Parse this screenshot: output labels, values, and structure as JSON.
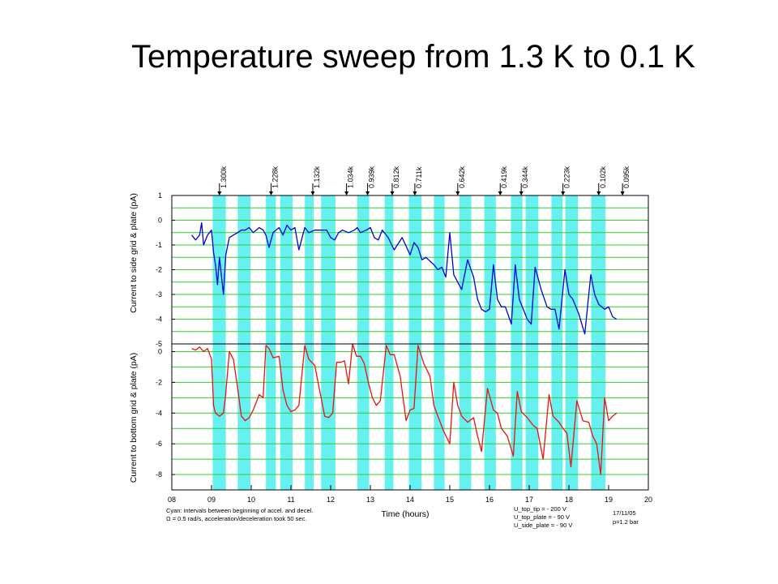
{
  "slide": {
    "title": "Temperature sweep from 1.3 K to 0.1 K"
  },
  "chart_data": {
    "type": "line",
    "xlabel": "Time (hours)",
    "x_ticks": [
      "08",
      "09",
      "10",
      "11",
      "12",
      "13",
      "14",
      "15",
      "16",
      "17",
      "18",
      "19",
      "20"
    ],
    "xlim": [
      8,
      20
    ],
    "grid": true,
    "colors": {
      "band": "#66f0f0",
      "grid": "#33cc33",
      "top_series": "#0000dd",
      "bottom_series": "#ee1111"
    },
    "cyan_intervals": [
      [
        9.03,
        9.36
      ],
      [
        9.66,
        9.98
      ],
      [
        10.37,
        10.62
      ],
      [
        10.73,
        11.04
      ],
      [
        11.35,
        11.57
      ],
      [
        11.76,
        12.12
      ],
      [
        12.67,
        12.97
      ],
      [
        13.36,
        13.58
      ],
      [
        13.97,
        14.29
      ],
      [
        14.6,
        14.87
      ],
      [
        15.24,
        15.54
      ],
      [
        15.87,
        16.16
      ],
      [
        16.54,
        16.83
      ],
      [
        16.91,
        17.23
      ],
      [
        17.56,
        17.84
      ],
      [
        17.91,
        18.23
      ],
      [
        18.56,
        18.92
      ]
    ],
    "temperature_markers": [
      {
        "time": 9.2,
        "label": "1.300k"
      },
      {
        "time": 10.5,
        "label": "1.228k"
      },
      {
        "time": 11.55,
        "label": "1.132k"
      },
      {
        "time": 12.4,
        "label": "1.034k"
      },
      {
        "time": 12.93,
        "label": "0.939k"
      },
      {
        "time": 13.55,
        "label": "0.812k"
      },
      {
        "time": 14.12,
        "label": "0.711k"
      },
      {
        "time": 15.2,
        "label": "0.642k"
      },
      {
        "time": 16.27,
        "label": "0.419k"
      },
      {
        "time": 16.8,
        "label": "0.344k"
      },
      {
        "time": 17.85,
        "label": "0.223k"
      },
      {
        "time": 18.75,
        "label": "0.102k"
      },
      {
        "time": 19.35,
        "label": "0.095k"
      }
    ],
    "panels": [
      {
        "ylabel": "Current to side grid & plate (pA)",
        "y_ticks": [
          1,
          0,
          -1,
          -2,
          -3,
          -4,
          -5
        ],
        "ylim": [
          -5,
          1
        ],
        "grid_step": 0.5,
        "series": {
          "x": [
            8.5,
            8.6,
            8.7,
            8.75,
            8.8,
            8.9,
            9.0,
            9.05,
            9.1,
            9.15,
            9.2,
            9.3,
            9.36,
            9.45,
            9.55,
            9.66,
            9.75,
            9.85,
            9.95,
            10.05,
            10.2,
            10.3,
            10.37,
            10.45,
            10.55,
            10.7,
            10.8,
            10.9,
            11.0,
            11.1,
            11.2,
            11.35,
            11.45,
            11.6,
            11.8,
            11.9,
            12.0,
            12.1,
            12.2,
            12.3,
            12.45,
            12.6,
            12.67,
            12.75,
            12.9,
            13.0,
            13.1,
            13.2,
            13.3,
            13.45,
            13.6,
            13.8,
            14.0,
            14.1,
            14.2,
            14.3,
            14.4,
            14.6,
            14.7,
            14.8,
            14.9,
            15.0,
            15.1,
            15.2,
            15.3,
            15.45,
            15.6,
            15.7,
            15.8,
            15.9,
            16.0,
            16.1,
            16.2,
            16.3,
            16.4,
            16.55,
            16.65,
            16.75,
            16.85,
            16.95,
            17.05,
            17.15,
            17.3,
            17.45,
            17.55,
            17.65,
            17.75,
            17.9,
            18.0,
            18.1,
            18.25,
            18.4,
            18.55,
            18.65,
            18.75,
            18.9,
            19.0,
            19.1,
            19.2
          ],
          "values": [
            -0.6,
            -0.8,
            -0.6,
            -0.1,
            -1.0,
            -0.6,
            -0.4,
            -1.3,
            -1.8,
            -2.6,
            -1.5,
            -3.0,
            -1.4,
            -0.7,
            -0.6,
            -0.5,
            -0.4,
            -0.4,
            -0.3,
            -0.5,
            -0.3,
            -0.4,
            -0.6,
            -1.1,
            -0.5,
            -0.3,
            -0.6,
            -0.2,
            -0.4,
            -0.3,
            -1.2,
            -0.3,
            -0.5,
            -0.4,
            -0.4,
            -0.4,
            -0.7,
            -0.8,
            -0.5,
            -0.4,
            -0.5,
            -0.4,
            -0.3,
            -0.5,
            -0.4,
            -0.3,
            -0.7,
            -0.8,
            -0.4,
            -0.7,
            -1.2,
            -0.7,
            -1.4,
            -0.9,
            -1.1,
            -1.6,
            -1.5,
            -1.8,
            -2.0,
            -1.9,
            -2.3,
            -0.5,
            -2.2,
            -2.5,
            -2.8,
            -1.6,
            -2.3,
            -3.2,
            -3.6,
            -3.7,
            -3.6,
            -1.8,
            -3.2,
            -3.5,
            -3.5,
            -4.2,
            -1.8,
            -3.2,
            -3.6,
            -4.0,
            -4.2,
            -1.9,
            -2.8,
            -3.5,
            -3.6,
            -3.6,
            -4.4,
            -2.0,
            -3.0,
            -3.2,
            -3.8,
            -4.6,
            -2.2,
            -3.0,
            -3.4,
            -3.6,
            -3.5,
            -3.9,
            -4.0
          ]
        }
      },
      {
        "ylabel": "Current to bottom grid & plate (pA)",
        "y_ticks": [
          0,
          -2,
          -4,
          -6,
          -8
        ],
        "ylim": [
          -9,
          0.5
        ],
        "grid_step": 1,
        "series": {
          "x": [
            8.5,
            8.6,
            8.7,
            8.8,
            8.9,
            9.0,
            9.05,
            9.1,
            9.2,
            9.3,
            9.35,
            9.45,
            9.55,
            9.66,
            9.75,
            9.85,
            9.95,
            10.05,
            10.2,
            10.3,
            10.37,
            10.45,
            10.55,
            10.7,
            10.8,
            10.9,
            11.0,
            11.1,
            11.2,
            11.35,
            11.45,
            11.6,
            11.76,
            11.85,
            11.95,
            12.05,
            12.15,
            12.25,
            12.35,
            12.45,
            12.55,
            12.65,
            12.75,
            12.85,
            12.95,
            13.05,
            13.15,
            13.25,
            13.4,
            13.5,
            13.6,
            13.75,
            13.9,
            14.0,
            14.1,
            14.2,
            14.35,
            14.5,
            14.6,
            14.7,
            14.85,
            15.0,
            15.1,
            15.2,
            15.3,
            15.45,
            15.6,
            15.7,
            15.8,
            15.95,
            16.1,
            16.2,
            16.3,
            16.45,
            16.6,
            16.7,
            16.8,
            16.95,
            17.1,
            17.2,
            17.35,
            17.5,
            17.6,
            17.75,
            17.85,
            17.95,
            18.05,
            18.2,
            18.35,
            18.5,
            18.6,
            18.7,
            18.8,
            18.9,
            19.0,
            19.1,
            19.2
          ],
          "values": [
            0.2,
            0.1,
            0.3,
            0.0,
            0.2,
            -0.5,
            -3.5,
            -4.0,
            -4.2,
            -4.0,
            -3.0,
            0.0,
            -0.5,
            -2.4,
            -4.2,
            -4.5,
            -4.3,
            -3.8,
            -2.8,
            -3.0,
            0.4,
            0.2,
            -0.4,
            -0.3,
            -2.5,
            -3.5,
            -3.9,
            -3.8,
            -3.5,
            0.4,
            -0.5,
            -0.9,
            -3.0,
            -4.2,
            -4.3,
            -4.0,
            -0.7,
            -0.7,
            -0.6,
            -2.1,
            0.5,
            -0.3,
            -0.3,
            -0.8,
            -2.0,
            -3.0,
            -3.5,
            -3.2,
            0.4,
            -0.2,
            -0.2,
            -1.6,
            -4.5,
            -3.8,
            -3.7,
            0.4,
            -0.8,
            -1.6,
            -3.5,
            -4.2,
            -5.2,
            -6.0,
            -2.0,
            -3.5,
            -4.2,
            -4.6,
            -4.3,
            -5.5,
            -6.5,
            -2.4,
            -3.8,
            -4.0,
            -5.0,
            -5.5,
            -6.8,
            -2.6,
            -3.9,
            -4.3,
            -4.8,
            -5.0,
            -7.0,
            -2.8,
            -4.2,
            -4.6,
            -5.0,
            -5.3,
            -7.5,
            -3.2,
            -4.5,
            -4.6,
            -5.5,
            -6.0,
            -8.0,
            -3.0,
            -4.5,
            -4.2,
            -4.0
          ]
        }
      }
    ]
  },
  "annotations": {
    "cyan_note_line1": "Cyan: intervals between beginning of accel. and decel.",
    "cyan_note_line2": "Ω = 0.5 rad/s, acceleration/deceleration took 50 sec.",
    "voltages": [
      "U_top_tip = - 200 V",
      "U_top_plate = - 90 V",
      "U_side_plate = - 90 V"
    ],
    "date": "17/11/05",
    "pressure": "p=1.2 bar"
  }
}
